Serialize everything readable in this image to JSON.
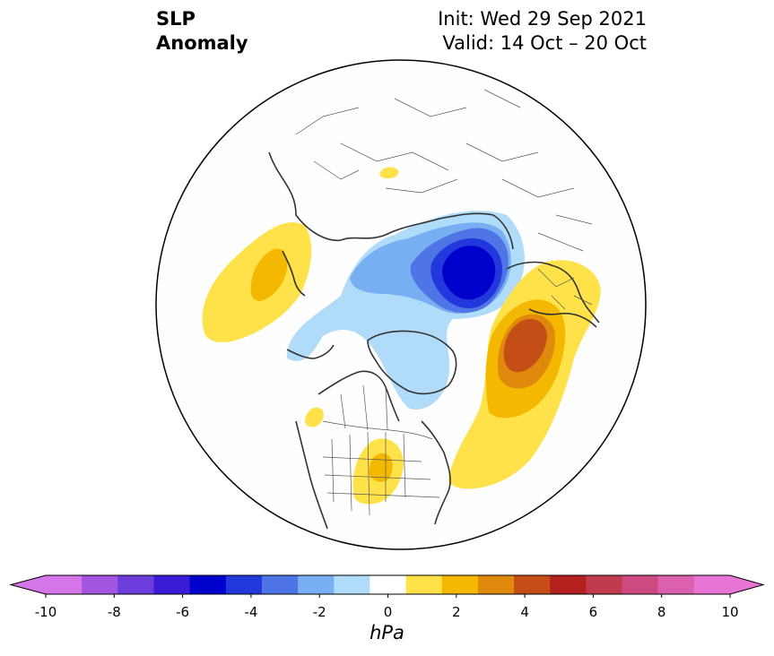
{
  "header": {
    "title_line1": "SLP",
    "title_line2": "Anomaly",
    "init": "Init: Wed 29 Sep 2021",
    "valid": "Valid: 14 Oct – 20 Oct"
  },
  "colorbar": {
    "unit": "hPa",
    "tick_labels": [
      "-10",
      "-8",
      "-6",
      "-4",
      "-2",
      "0",
      "2",
      "4",
      "6",
      "8",
      "10"
    ],
    "levels": [
      -10,
      -9,
      -8,
      -7,
      -6,
      -5,
      -4,
      -3,
      -2,
      -1,
      1,
      2,
      3,
      4,
      5,
      6,
      7,
      8,
      9,
      10
    ],
    "colors": [
      "#d575e8",
      "#a155e0",
      "#6d3ddb",
      "#3b1cd6",
      "#0000cc",
      "#2238dd",
      "#4e74e6",
      "#77aff2",
      "#b0dcfa",
      "#ffffff",
      "#ffe24a",
      "#f5b800",
      "#e08a0d",
      "#c44e15",
      "#b3201e",
      "#c23a4e",
      "#cc4a80",
      "#db60ad",
      "#e875d5"
    ],
    "under_color": "#d575e8",
    "over_color": "#e875d5"
  },
  "map": {
    "projection": "north-polar-stereographic",
    "background": "#fdfefd",
    "coastline_color": "#333333",
    "border_color": "#555555"
  }
}
